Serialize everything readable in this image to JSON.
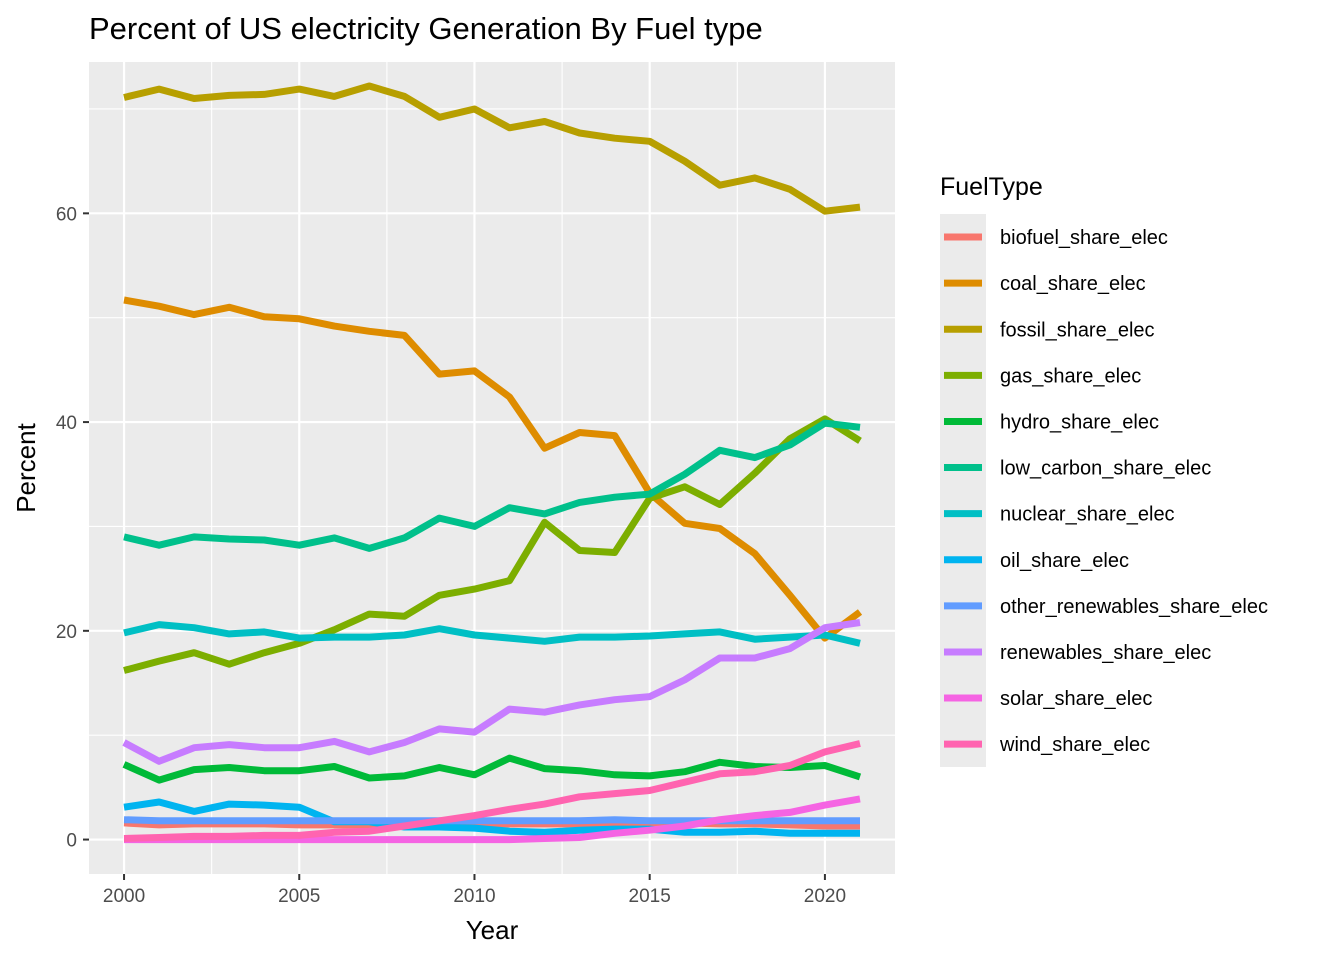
{
  "chart_data": {
    "type": "line",
    "title": "Percent of US electricity Generation By Fuel type",
    "xlabel": "Year",
    "ylabel": "Percent",
    "xlim": [
      1999,
      2022
    ],
    "ylim": [
      -3.3,
      74.5
    ],
    "x_ticks": [
      2000,
      2005,
      2010,
      2015,
      2020
    ],
    "y_ticks": [
      0,
      20,
      40,
      60
    ],
    "x_tick_labels": [
      "2000",
      "2005",
      "2010",
      "2015",
      "2020"
    ],
    "y_tick_labels": [
      "0",
      "20",
      "40",
      "60"
    ],
    "grid": true,
    "legend_position": "right",
    "legend_title": "FuelType",
    "x": [
      2000,
      2001,
      2002,
      2003,
      2004,
      2005,
      2006,
      2007,
      2008,
      2009,
      2010,
      2011,
      2012,
      2013,
      2014,
      2015,
      2016,
      2017,
      2018,
      2019,
      2020,
      2021
    ],
    "series": [
      {
        "name": "biofuel_share_elec",
        "color": "#F8766D",
        "values": [
          1.6,
          1.4,
          1.5,
          1.5,
          1.5,
          1.4,
          1.4,
          1.4,
          1.4,
          1.4,
          1.5,
          1.5,
          1.5,
          1.5,
          1.6,
          1.6,
          1.6,
          1.5,
          1.5,
          1.4,
          1.3,
          1.3
        ]
      },
      {
        "name": "coal_share_elec",
        "color": "#DE8C00",
        "values": [
          51.7,
          51.1,
          50.3,
          51.0,
          50.1,
          49.9,
          49.2,
          48.7,
          48.3,
          44.6,
          44.9,
          42.4,
          37.5,
          39.0,
          38.7,
          33.2,
          30.3,
          29.8,
          27.4,
          23.4,
          19.3,
          21.8
        ]
      },
      {
        "name": "fossil_share_elec",
        "color": "#B79F00",
        "values": [
          71.1,
          71.9,
          71.0,
          71.3,
          71.4,
          71.9,
          71.2,
          72.2,
          71.2,
          69.2,
          70.0,
          68.2,
          68.8,
          67.7,
          67.2,
          66.9,
          65.0,
          62.7,
          63.4,
          62.3,
          60.2,
          60.6
        ]
      },
      {
        "name": "gas_share_elec",
        "color": "#7CAE00",
        "values": [
          16.2,
          17.1,
          17.9,
          16.8,
          17.9,
          18.8,
          20.1,
          21.6,
          21.4,
          23.4,
          24.0,
          24.8,
          30.4,
          27.7,
          27.5,
          32.7,
          33.8,
          32.1,
          35.1,
          38.4,
          40.3,
          38.2
        ]
      },
      {
        "name": "hydro_share_elec",
        "color": "#00BA38",
        "values": [
          7.2,
          5.7,
          6.7,
          6.9,
          6.6,
          6.6,
          7.0,
          5.9,
          6.1,
          6.9,
          6.2,
          7.8,
          6.8,
          6.6,
          6.2,
          6.1,
          6.5,
          7.4,
          7.0,
          6.9,
          7.1,
          6.0
        ]
      },
      {
        "name": "low_carbon_share_elec",
        "color": "#00C08B",
        "values": [
          29.0,
          28.2,
          29.0,
          28.8,
          28.7,
          28.2,
          28.9,
          27.9,
          28.9,
          30.8,
          30.0,
          31.8,
          31.2,
          32.3,
          32.8,
          33.1,
          35.0,
          37.3,
          36.6,
          37.8,
          39.9,
          39.5
        ]
      },
      {
        "name": "nuclear_share_elec",
        "color": "#00BFC4",
        "values": [
          19.8,
          20.6,
          20.3,
          19.7,
          19.9,
          19.3,
          19.4,
          19.4,
          19.6,
          20.2,
          19.6,
          19.3,
          19.0,
          19.4,
          19.4,
          19.5,
          19.7,
          19.9,
          19.2,
          19.4,
          19.6,
          18.8
        ]
      },
      {
        "name": "oil_share_elec",
        "color": "#00B4F0",
        "values": [
          3.1,
          3.6,
          2.7,
          3.4,
          3.3,
          3.1,
          1.7,
          1.7,
          1.2,
          1.2,
          1.1,
          0.8,
          0.7,
          0.9,
          1.0,
          1.0,
          0.7,
          0.7,
          0.8,
          0.6,
          0.6,
          0.6
        ]
      },
      {
        "name": "other_renewables_share_elec",
        "color": "#619CFF",
        "values": [
          1.9,
          1.8,
          1.8,
          1.8,
          1.8,
          1.8,
          1.8,
          1.8,
          1.8,
          1.8,
          1.8,
          1.8,
          1.8,
          1.8,
          1.9,
          1.8,
          1.8,
          1.8,
          1.8,
          1.8,
          1.8,
          1.8
        ]
      },
      {
        "name": "renewables_share_elec",
        "color": "#C77CFF",
        "values": [
          9.3,
          7.5,
          8.8,
          9.1,
          8.8,
          8.8,
          9.4,
          8.4,
          9.3,
          10.6,
          10.3,
          12.5,
          12.2,
          12.9,
          13.4,
          13.7,
          15.3,
          17.4,
          17.4,
          18.3,
          20.3,
          20.8
        ]
      },
      {
        "name": "solar_share_elec",
        "color": "#F564E3",
        "values": [
          0.0,
          0.0,
          0.0,
          0.0,
          0.0,
          0.0,
          0.0,
          0.0,
          0.0,
          0.0,
          0.0,
          0.0,
          0.1,
          0.2,
          0.6,
          0.9,
          1.3,
          1.9,
          2.3,
          2.6,
          3.3,
          3.9
        ]
      },
      {
        "name": "wind_share_elec",
        "color": "#FF64B0",
        "values": [
          0.1,
          0.2,
          0.3,
          0.3,
          0.4,
          0.4,
          0.7,
          0.8,
          1.3,
          1.8,
          2.3,
          2.9,
          3.4,
          4.1,
          4.4,
          4.7,
          5.5,
          6.3,
          6.5,
          7.1,
          8.4,
          9.2
        ]
      }
    ]
  }
}
